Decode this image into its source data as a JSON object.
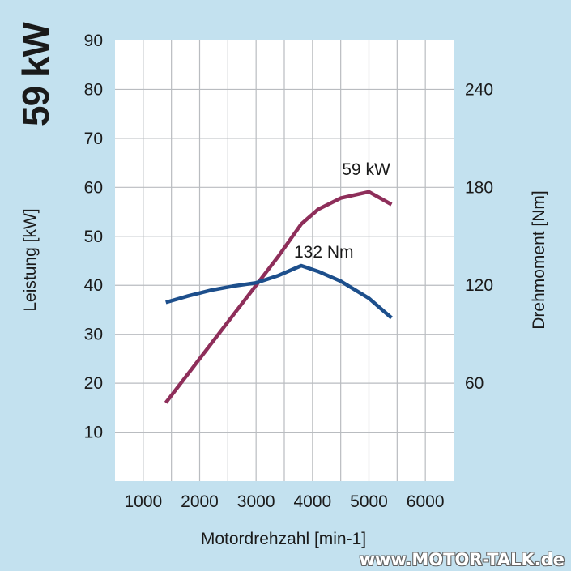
{
  "chart_data": {
    "type": "line",
    "title": "59 kW",
    "xlabel": "Motordrehzahl [min-1]",
    "ylabel_left": "Leistung [kW]",
    "ylabel_right": "Drehmoment [Nm]",
    "xlim": [
      500,
      6500
    ],
    "ylim_left": [
      0,
      90
    ],
    "ylim_right": [
      0,
      270
    ],
    "x_ticks": [
      "1000",
      "2000",
      "3000",
      "4000",
      "5000",
      "6000"
    ],
    "y_left_ticks": [
      "10",
      "20",
      "30",
      "40",
      "50",
      "60",
      "70",
      "80",
      "90"
    ],
    "y_right_ticks": [
      "60",
      "120",
      "180",
      "240"
    ],
    "grid": true,
    "series": [
      {
        "name": "59 kW",
        "axis": "left",
        "color": "#8e2e5a",
        "x": [
          1400,
          1800,
          2200,
          2600,
          3000,
          3400,
          3800,
          4100,
          4500,
          5000,
          5400
        ],
        "y": [
          16,
          22,
          28,
          34,
          40,
          46,
          52.5,
          55.5,
          57.8,
          59.1,
          56.5
        ]
      },
      {
        "name": "132 Nm",
        "axis": "right",
        "color": "#1d4f8c",
        "x": [
          1400,
          1800,
          2200,
          2600,
          3000,
          3400,
          3800,
          4100,
          4500,
          5000,
          5400
        ],
        "y": [
          109.5,
          113.5,
          117,
          119.5,
          121.5,
          126,
          132,
          128.5,
          122.5,
          112,
          100
        ]
      }
    ],
    "annotations": [
      {
        "text": "59 kW",
        "x": 4950,
        "y": 62.5,
        "axis": "left"
      },
      {
        "text": "132 Nm",
        "x": 4200,
        "y": 137,
        "axis": "right"
      }
    ]
  },
  "watermark": "www.MOTOR-TALK.de"
}
